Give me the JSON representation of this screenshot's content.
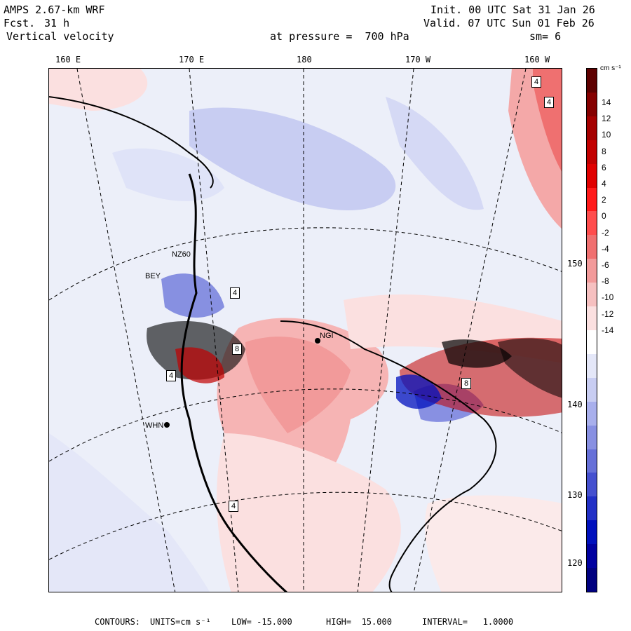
{
  "header": {
    "model": "AMPS 2.67-km WRF",
    "fcst_label": "Fcst.",
    "fcst_value": "31 h",
    "field": "Vertical velocity",
    "init": "Init. 00 UTC Sat 31 Jan 26",
    "valid": "Valid. 07 UTC Sun 01 Feb 26",
    "pressure": "at pressure =  700 hPa",
    "smoothing": "sm= 6"
  },
  "longitude_labels": [
    "160 E",
    "170 E",
    "180",
    "170 W",
    "160 W"
  ],
  "latitude_labels": [
    "150 W",
    "140 W",
    "130 W",
    "120 W"
  ],
  "colorbar": {
    "units": "cm s⁻¹",
    "ticks": [
      "14",
      "12",
      "10",
      "8",
      "6",
      "4",
      "2",
      "0",
      "-2",
      "-4",
      "-6",
      "-8",
      "-10",
      "-12",
      "-14"
    ],
    "colors": [
      "#5e0000",
      "#850000",
      "#a50000",
      "#c20000",
      "#e00000",
      "#ff1a1a",
      "#ff4d4d",
      "#f07070",
      "#f29a9a",
      "#f6c0c0",
      "#fbe0e0",
      "#ffffff",
      "#e4e7f8",
      "#c8cdf2",
      "#a8afec",
      "#8890e2",
      "#6670d8",
      "#4550cf",
      "#2230c6",
      "#0010bd",
      "#0000a0",
      "#000080"
    ]
  },
  "stations": [
    "BEY",
    "NZ60",
    "NGI",
    "WHN"
  ],
  "box_labels": [
    "4",
    "4",
    "4",
    "4",
    "8",
    "8",
    "4"
  ],
  "footer": {
    "contours": "CONTOURS:",
    "units": "UNITS=cm s⁻¹",
    "low": "LOW= -15.000",
    "high": "HIGH=  15.000",
    "interval": "INTERVAL=   1.0000"
  }
}
